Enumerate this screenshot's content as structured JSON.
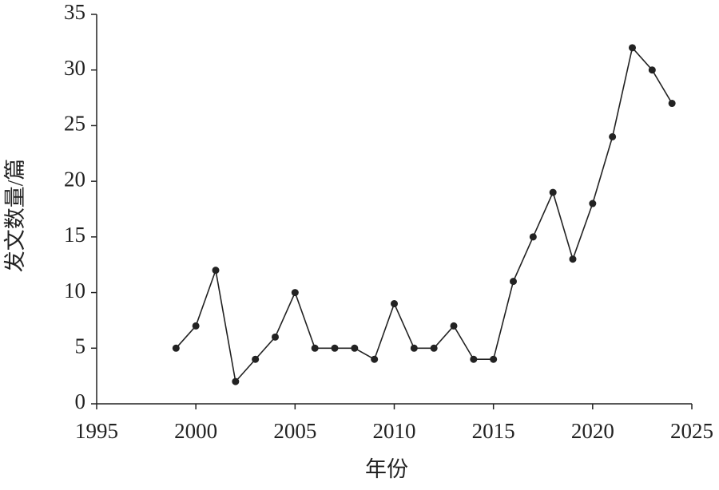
{
  "chart_data": {
    "type": "line",
    "x_label": "年份",
    "y_label": "发文数量/篇",
    "x": [
      1999,
      2000,
      2001,
      2002,
      2003,
      2004,
      2005,
      2006,
      2007,
      2008,
      2009,
      2010,
      2011,
      2012,
      2013,
      2014,
      2015,
      2016,
      2017,
      2018,
      2019,
      2020,
      2021,
      2022,
      2023,
      2024
    ],
    "values": [
      5,
      7,
      12,
      2,
      4,
      6,
      10,
      5,
      5,
      5,
      4,
      9,
      5,
      5,
      7,
      4,
      4,
      11,
      15,
      19,
      13,
      18,
      24,
      32,
      30,
      27
    ],
    "color": "#222222",
    "xlim": [
      1995,
      2025
    ],
    "xticks": [
      1995,
      2000,
      2005,
      2010,
      2015,
      2020,
      2025
    ],
    "ylim": [
      0,
      35
    ],
    "yticks": [
      0,
      5,
      10,
      15,
      20,
      25,
      30,
      35
    ],
    "grid": false
  }
}
